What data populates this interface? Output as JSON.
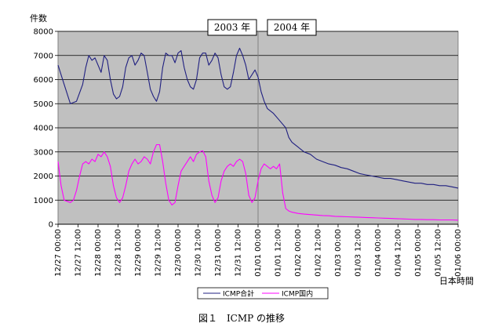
{
  "chart_data": {
    "type": "line",
    "ylabel": "件数",
    "xlabel": "日本時間",
    "ylim": [
      0,
      8000
    ],
    "yticks": [
      0,
      1000,
      2000,
      3000,
      4000,
      5000,
      6000,
      7000,
      8000
    ],
    "grid": true,
    "legend_position": "bottom-center",
    "xtick_labels": [
      "12/27 00:00",
      "12/27 12:00",
      "12/28 00:00",
      "12/28 12:00",
      "12/29 00:00",
      "12/29 12:00",
      "12/30 00:00",
      "12/30 12:00",
      "12/31 00:00",
      "12/31 12:00",
      "01/01 00:00",
      "01/01 12:00",
      "01/02 00:00",
      "01/02 12:00",
      "01/03 00:00",
      "01/03 12:00",
      "01/04 00:00",
      "01/04 12:00",
      "01/05 00:00",
      "01/05 12:00",
      "01/06 00:00"
    ],
    "year_labels": [
      "2003 年",
      "2004 年"
    ],
    "divider_at_tick": "01/01 00:00",
    "series": [
      {
        "name": "ICMP合計",
        "color": "#1f1f80",
        "points": [
          [
            0,
            6600
          ],
          [
            2,
            5800
          ],
          [
            4,
            5000
          ],
          [
            6,
            5100
          ],
          [
            8,
            5800
          ],
          [
            9,
            6500
          ],
          [
            10,
            7000
          ],
          [
            11,
            6800
          ],
          [
            12,
            6900
          ],
          [
            14,
            6300
          ],
          [
            15,
            7000
          ],
          [
            16,
            6800
          ],
          [
            17,
            6000
          ],
          [
            18,
            5400
          ],
          [
            19,
            5200
          ],
          [
            20,
            5300
          ],
          [
            21,
            5700
          ],
          [
            22,
            6500
          ],
          [
            23,
            6900
          ],
          [
            24,
            7000
          ],
          [
            25,
            6600
          ],
          [
            26,
            6800
          ],
          [
            27,
            7100
          ],
          [
            28,
            7000
          ],
          [
            29,
            6300
          ],
          [
            30,
            5600
          ],
          [
            31,
            5300
          ],
          [
            32,
            5100
          ],
          [
            33,
            5500
          ],
          [
            34,
            6500
          ],
          [
            35,
            7100
          ],
          [
            36,
            7000
          ],
          [
            37,
            7000
          ],
          [
            38,
            6700
          ],
          [
            39,
            7100
          ],
          [
            40,
            7200
          ],
          [
            41,
            6500
          ],
          [
            42,
            6000
          ],
          [
            43,
            5700
          ],
          [
            44,
            5600
          ],
          [
            45,
            6000
          ],
          [
            46,
            6900
          ],
          [
            47,
            7100
          ],
          [
            48,
            7100
          ],
          [
            49,
            6600
          ],
          [
            50,
            6800
          ],
          [
            51,
            7100
          ],
          [
            52,
            6900
          ],
          [
            53,
            6200
          ],
          [
            54,
            5700
          ],
          [
            55,
            5600
          ],
          [
            56,
            5700
          ],
          [
            57,
            6300
          ],
          [
            58,
            7000
          ],
          [
            59,
            7300
          ],
          [
            60,
            7000
          ],
          [
            61,
            6600
          ],
          [
            62,
            6000
          ],
          [
            63,
            6200
          ],
          [
            64,
            6400
          ],
          [
            65,
            6100
          ],
          [
            66,
            5500
          ],
          [
            67,
            5100
          ],
          [
            68,
            4800
          ],
          [
            70,
            4600
          ],
          [
            72,
            4300
          ],
          [
            74,
            4000
          ],
          [
            75,
            3600
          ],
          [
            76,
            3400
          ],
          [
            78,
            3200
          ],
          [
            80,
            3000
          ],
          [
            82,
            2900
          ],
          [
            84,
            2700
          ],
          [
            86,
            2600
          ],
          [
            88,
            2500
          ],
          [
            90,
            2450
          ],
          [
            92,
            2350
          ],
          [
            94,
            2300
          ],
          [
            96,
            2200
          ],
          [
            98,
            2100
          ],
          [
            100,
            2050
          ],
          [
            102,
            2000
          ],
          [
            104,
            1950
          ],
          [
            106,
            1900
          ],
          [
            108,
            1900
          ],
          [
            110,
            1850
          ],
          [
            112,
            1800
          ],
          [
            114,
            1750
          ],
          [
            116,
            1700
          ],
          [
            118,
            1700
          ],
          [
            120,
            1650
          ],
          [
            122,
            1650
          ],
          [
            124,
            1600
          ],
          [
            126,
            1600
          ],
          [
            128,
            1550
          ],
          [
            130,
            1500
          ]
        ]
      },
      {
        "name": "ICMP国内",
        "color": "#ff00ff",
        "points": [
          [
            0,
            2600
          ],
          [
            1,
            1600
          ],
          [
            2,
            1000
          ],
          [
            3,
            950
          ],
          [
            4,
            900
          ],
          [
            5,
            1000
          ],
          [
            6,
            1400
          ],
          [
            7,
            2000
          ],
          [
            8,
            2500
          ],
          [
            9,
            2600
          ],
          [
            10,
            2500
          ],
          [
            11,
            2700
          ],
          [
            12,
            2600
          ],
          [
            13,
            2900
          ],
          [
            14,
            2800
          ],
          [
            15,
            3000
          ],
          [
            16,
            2800
          ],
          [
            17,
            2400
          ],
          [
            18,
            1600
          ],
          [
            19,
            1100
          ],
          [
            20,
            900
          ],
          [
            21,
            1100
          ],
          [
            22,
            1600
          ],
          [
            23,
            2200
          ],
          [
            24,
            2500
          ],
          [
            25,
            2700
          ],
          [
            26,
            2500
          ],
          [
            27,
            2600
          ],
          [
            28,
            2800
          ],
          [
            29,
            2700
          ],
          [
            30,
            2500
          ],
          [
            31,
            3000
          ],
          [
            32,
            3300
          ],
          [
            33,
            3300
          ],
          [
            34,
            2600
          ],
          [
            35,
            1700
          ],
          [
            36,
            1000
          ],
          [
            37,
            800
          ],
          [
            38,
            900
          ],
          [
            39,
            1600
          ],
          [
            40,
            2200
          ],
          [
            41,
            2400
          ],
          [
            42,
            2600
          ],
          [
            43,
            2800
          ],
          [
            44,
            2600
          ],
          [
            45,
            2900
          ],
          [
            46,
            3000
          ],
          [
            47,
            3050
          ],
          [
            48,
            2800
          ],
          [
            49,
            1800
          ],
          [
            50,
            1200
          ],
          [
            51,
            900
          ],
          [
            52,
            1100
          ],
          [
            53,
            1800
          ],
          [
            54,
            2200
          ],
          [
            55,
            2400
          ],
          [
            56,
            2500
          ],
          [
            57,
            2400
          ],
          [
            58,
            2600
          ],
          [
            59,
            2700
          ],
          [
            60,
            2600
          ],
          [
            61,
            2100
          ],
          [
            62,
            1200
          ],
          [
            63,
            900
          ],
          [
            64,
            1100
          ],
          [
            65,
            1800
          ],
          [
            66,
            2300
          ],
          [
            67,
            2500
          ],
          [
            68,
            2400
          ],
          [
            69,
            2300
          ],
          [
            70,
            2400
          ],
          [
            71,
            2300
          ],
          [
            72,
            2500
          ],
          [
            73,
            1300
          ],
          [
            74,
            650
          ],
          [
            75,
            550
          ],
          [
            76,
            500
          ],
          [
            78,
            450
          ],
          [
            80,
            420
          ],
          [
            82,
            400
          ],
          [
            84,
            380
          ],
          [
            86,
            360
          ],
          [
            88,
            350
          ],
          [
            90,
            330
          ],
          [
            92,
            320
          ],
          [
            94,
            310
          ],
          [
            96,
            300
          ],
          [
            98,
            290
          ],
          [
            100,
            280
          ],
          [
            102,
            270
          ],
          [
            104,
            260
          ],
          [
            106,
            250
          ],
          [
            108,
            240
          ],
          [
            110,
            230
          ],
          [
            112,
            220
          ],
          [
            114,
            210
          ],
          [
            116,
            200
          ],
          [
            118,
            200
          ],
          [
            120,
            190
          ],
          [
            122,
            190
          ],
          [
            124,
            180
          ],
          [
            126,
            180
          ],
          [
            128,
            180
          ],
          [
            130,
            170
          ]
        ]
      }
    ]
  },
  "caption": "図１　ICMP の推移"
}
